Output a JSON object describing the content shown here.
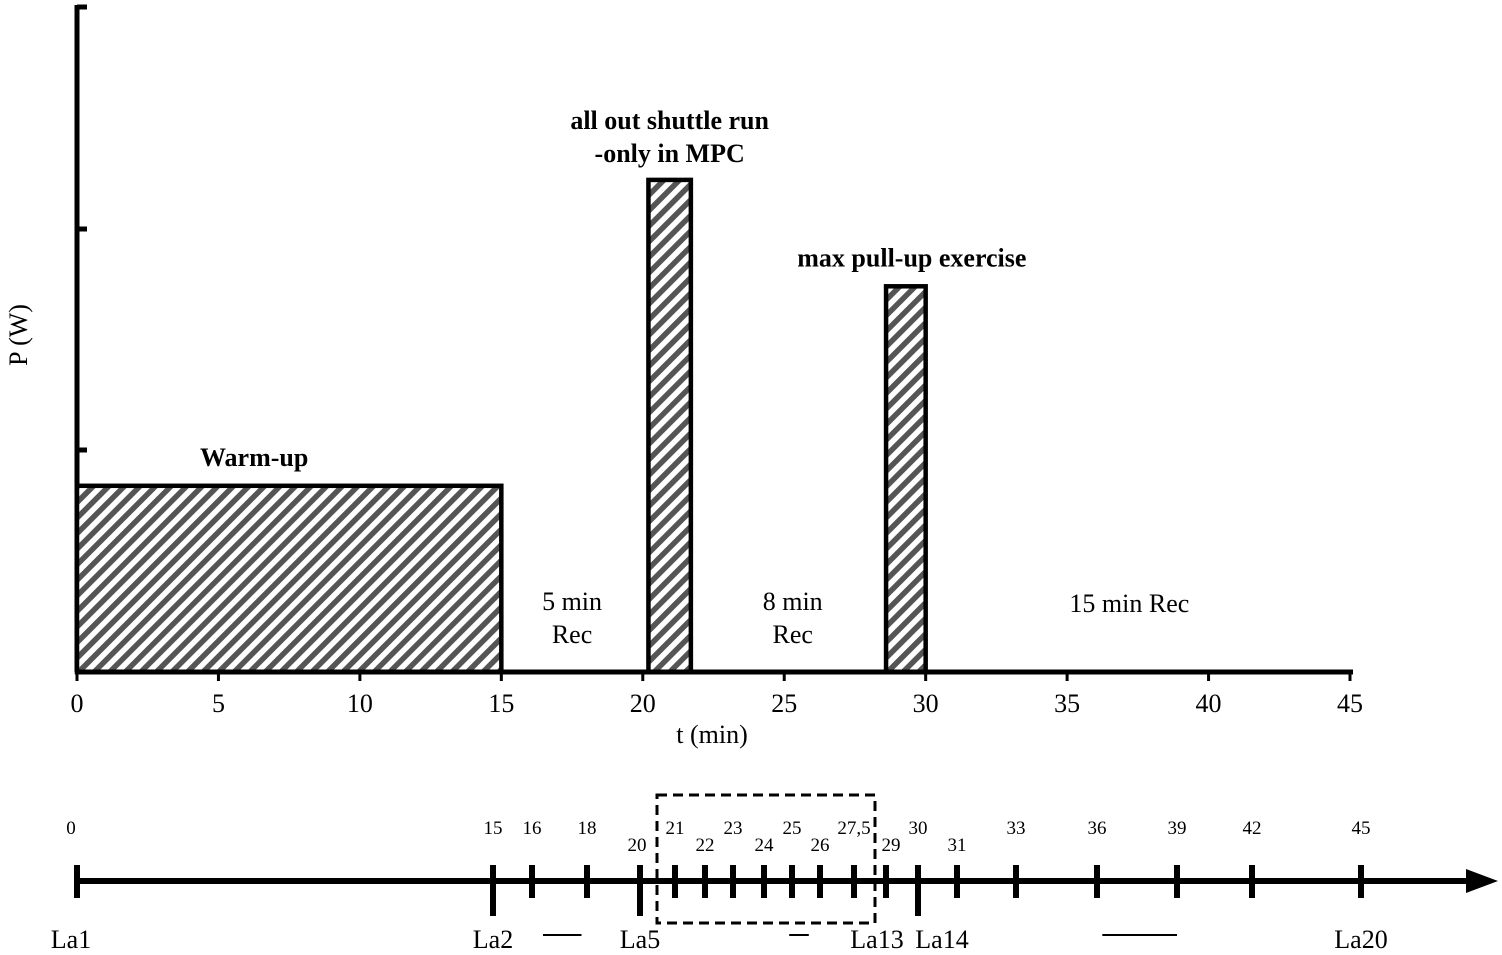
{
  "chart_data": {
    "type": "bar",
    "xlabel": "t (min)",
    "ylabel": "P (W)",
    "xlim": [
      0,
      45
    ],
    "x_ticks": [
      0,
      5,
      10,
      15,
      20,
      25,
      30,
      35,
      40,
      45
    ],
    "grid": false,
    "bars": [
      {
        "label": "Warm-up",
        "start": 0,
        "end": 15,
        "relative_power": 0.28,
        "fill": "hatched"
      },
      {
        "label_line1": "all out shuttle run",
        "label_line2": "-only in MPC",
        "start": 20.2,
        "end": 21.7,
        "relative_power": 0.74,
        "fill": "hatched"
      },
      {
        "label": "max pull-up exercise",
        "start": 28.6,
        "end": 30.0,
        "relative_power": 0.58,
        "fill": "hatched"
      }
    ],
    "recovery_labels": [
      {
        "line1": "5 min",
        "line2": "Rec",
        "at": 17.5
      },
      {
        "line1": "8 min",
        "line2": "Rec",
        "at": 25.3
      },
      {
        "line1": "15 min Rec",
        "line2": "",
        "at": 37.2
      }
    ]
  },
  "timeline": {
    "ticks": [
      {
        "label": "0",
        "t": 0
      },
      {
        "label": "15",
        "t": 15,
        "long": true
      },
      {
        "label": "16",
        "t": 16
      },
      {
        "label": "18",
        "t": 18
      },
      {
        "label": "20",
        "t": 20,
        "long": true
      },
      {
        "label": "21",
        "t": 21
      },
      {
        "label": "22",
        "t": 22
      },
      {
        "label": "23",
        "t": 23
      },
      {
        "label": "24",
        "t": 24
      },
      {
        "label": "25",
        "t": 25
      },
      {
        "label": "26",
        "t": 26
      },
      {
        "label": "27,5",
        "t": 27.5
      },
      {
        "label": "29",
        "t": 29
      },
      {
        "label": "30",
        "t": 30,
        "long": true
      },
      {
        "label": "31",
        "t": 31
      },
      {
        "label": "33",
        "t": 33
      },
      {
        "label": "36",
        "t": 36
      },
      {
        "label": "39",
        "t": 39
      },
      {
        "label": "42",
        "t": 42
      },
      {
        "label": "45",
        "t": 45
      }
    ],
    "samples": [
      {
        "label": "La1",
        "t": 0
      },
      {
        "label": "La2",
        "t": 15
      },
      {
        "label": "La5",
        "t": 20
      },
      {
        "label": "La13",
        "t": 29
      },
      {
        "label": "La14",
        "t": 30
      },
      {
        "label": "La20",
        "t": 45
      }
    ],
    "dashes": [
      {
        "from": 16.4,
        "to": 17.8
      },
      {
        "from": 24.9,
        "to": 25.6
      },
      {
        "from": 36.2,
        "to": 39
      }
    ],
    "highlight_box": {
      "from": 20.4,
      "to": 28.4
    }
  }
}
